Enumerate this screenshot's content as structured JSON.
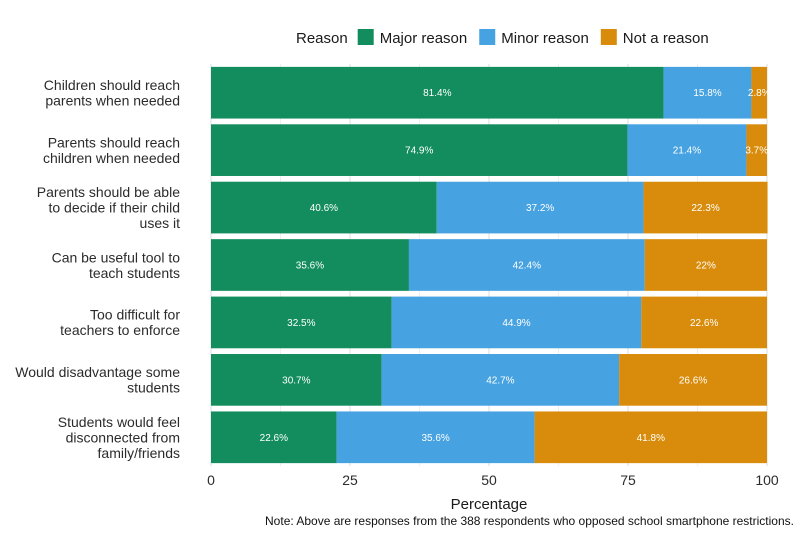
{
  "chart_data": {
    "type": "bar",
    "orientation": "horizontal",
    "stacked": true,
    "title": "",
    "xlabel": "Percentage",
    "ylabel": "",
    "xlim": [
      0,
      100
    ],
    "xticks": [
      0,
      25,
      50,
      75,
      100
    ],
    "categories": [
      [
        "Children should reach",
        "parents when needed"
      ],
      [
        "Parents should reach",
        "children when needed"
      ],
      [
        "Parents should be able",
        "to decide if their child",
        "uses it"
      ],
      [
        "Can be useful tool to",
        "teach students"
      ],
      [
        "Too difficult for",
        "teachers to enforce"
      ],
      [
        "Would disadvantage some",
        "students"
      ],
      [
        "Students would feel",
        "disconnected from",
        "family/friends"
      ]
    ],
    "series": [
      {
        "name": "Major reason",
        "color": "#138d5e",
        "values": [
          81.4,
          74.9,
          40.6,
          35.6,
          32.5,
          30.7,
          22.6
        ],
        "labels": [
          "81.4%",
          "74.9%",
          "40.6%",
          "35.6%",
          "32.5%",
          "30.7%",
          "22.6%"
        ]
      },
      {
        "name": "Minor reason",
        "color": "#46a2e0",
        "values": [
          15.8,
          21.4,
          37.2,
          42.4,
          44.9,
          42.7,
          35.6
        ],
        "labels": [
          "15.8%",
          "21.4%",
          "37.2%",
          "42.4%",
          "44.9%",
          "42.7%",
          "35.6%"
        ]
      },
      {
        "name": "Not a reason",
        "color": "#d98c0b",
        "values": [
          2.8,
          3.7,
          22.3,
          22.0,
          22.6,
          26.6,
          41.8
        ],
        "labels": [
          "2.8%",
          "3.7%",
          "22.3%",
          "22%",
          "22.6%",
          "26.6%",
          "41.8%"
        ]
      }
    ],
    "legend": {
      "title": "Reason",
      "placement": "top"
    },
    "grid": true,
    "note": "Note: Above are responses from the 388 respondents who opposed school smartphone restrictions."
  }
}
